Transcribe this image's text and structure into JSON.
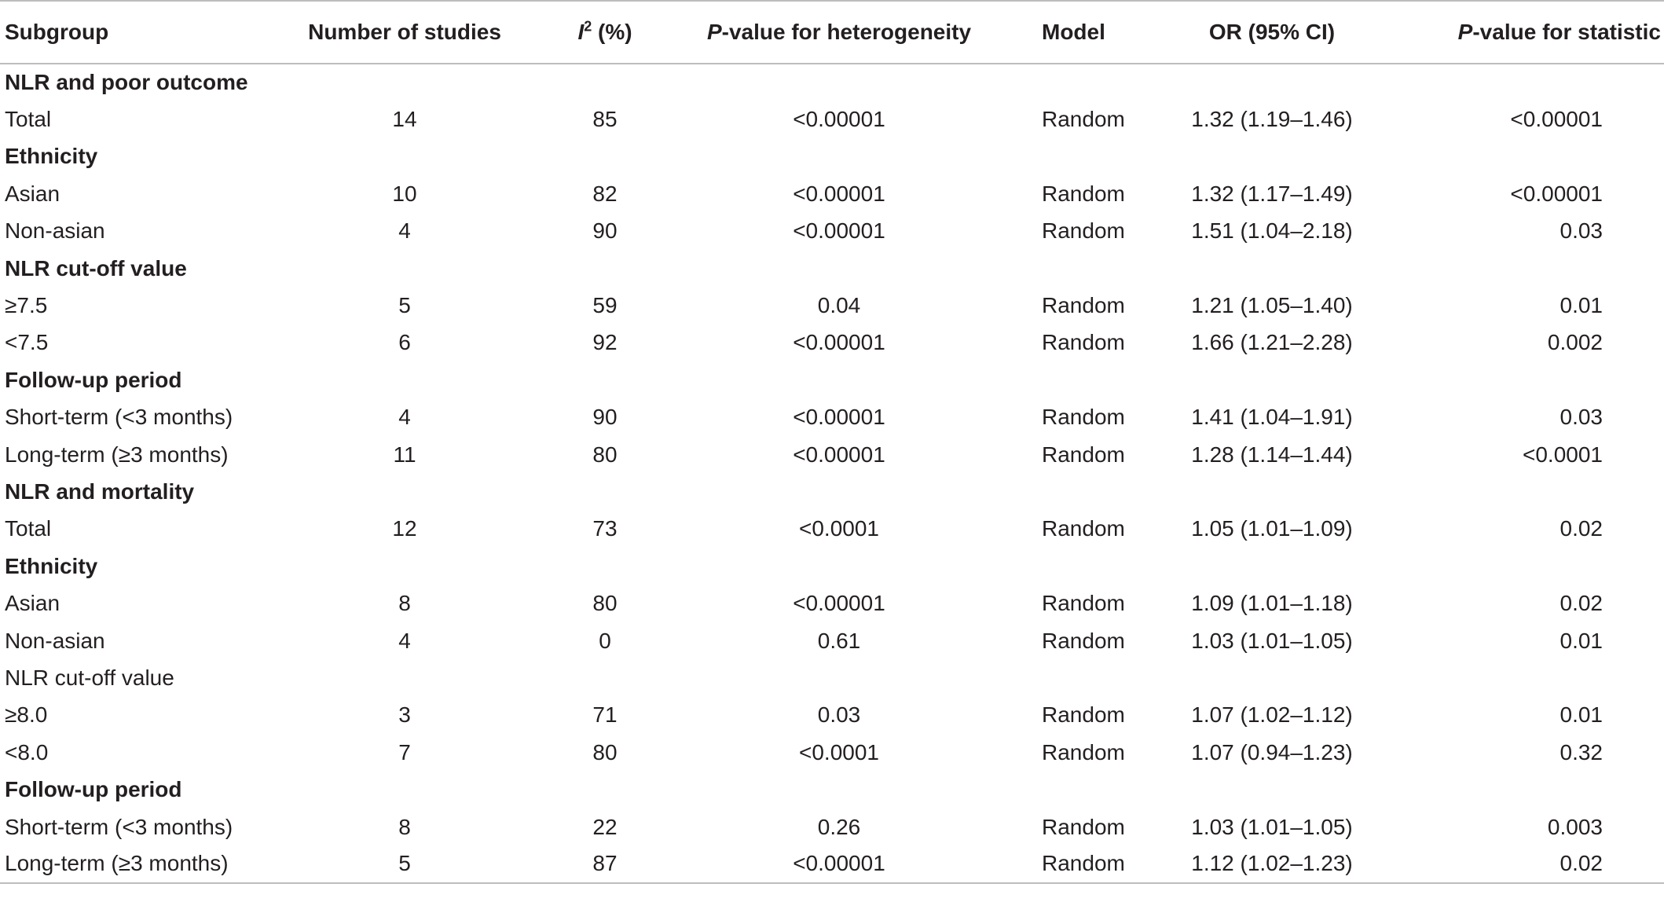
{
  "table": {
    "headers": {
      "subgroup": "Subgroup",
      "num_studies": "Number of studies",
      "i2_letter": "I",
      "i2_sup": "2",
      "i2_suffix": " (%)",
      "p_het_italic": "P",
      "p_het_rest": "-value for heterogeneity",
      "model": "Model",
      "or": "OR (95% CI)",
      "p_stat_italic": "P",
      "p_stat_rest": "-value for statistic"
    },
    "rows": [
      {
        "type": "section",
        "label": "NLR and poor outcome"
      },
      {
        "type": "data",
        "label": "Total",
        "n": "14",
        "i2": "85",
        "p_het": "<0.00001",
        "model": "Random",
        "or": "1.32 (1.19–1.46)",
        "p_stat": "<0.00001"
      },
      {
        "type": "section",
        "label": "Ethnicity"
      },
      {
        "type": "data",
        "label": "Asian",
        "n": "10",
        "i2": "82",
        "p_het": "<0.00001",
        "model": "Random",
        "or": "1.32 (1.17–1.49)",
        "p_stat": "<0.00001"
      },
      {
        "type": "data",
        "label": "Non-asian",
        "n": "4",
        "i2": "90",
        "p_het": "<0.00001",
        "model": "Random",
        "or": "1.51 (1.04–2.18)",
        "p_stat": "0.03"
      },
      {
        "type": "section",
        "label": "NLR cut-off value"
      },
      {
        "type": "data",
        "label": "≥7.5",
        "n": "5",
        "i2": "59",
        "p_het": "0.04",
        "model": "Random",
        "or": "1.21 (1.05–1.40)",
        "p_stat": "0.01"
      },
      {
        "type": "data",
        "label": "<7.5",
        "n": "6",
        "i2": "92",
        "p_het": "<0.00001",
        "model": "Random",
        "or": "1.66 (1.21–2.28)",
        "p_stat": "0.002"
      },
      {
        "type": "section",
        "label": "Follow-up period"
      },
      {
        "type": "data",
        "label": "Short-term (<3 months)",
        "n": "4",
        "i2": "90",
        "p_het": "<0.00001",
        "model": "Random",
        "or": "1.41 (1.04–1.91)",
        "p_stat": "0.03"
      },
      {
        "type": "data",
        "label": "Long-term (≥3 months)",
        "n": "11",
        "i2": "80",
        "p_het": "<0.00001",
        "model": "Random",
        "or": "1.28 (1.14–1.44)",
        "p_stat": "<0.0001"
      },
      {
        "type": "section",
        "label": "NLR and mortality"
      },
      {
        "type": "data",
        "label": "Total",
        "n": "12",
        "i2": "73",
        "p_het": "<0.0001",
        "model": "Random",
        "or": "1.05 (1.01–1.09)",
        "p_stat": "0.02"
      },
      {
        "type": "section",
        "label": "Ethnicity"
      },
      {
        "type": "data",
        "label": "Asian",
        "n": "8",
        "i2": "80",
        "p_het": "<0.00001",
        "model": "Random",
        "or": "1.09 (1.01–1.18)",
        "p_stat": "0.02"
      },
      {
        "type": "data",
        "label": "Non-asian",
        "n": "4",
        "i2": "0",
        "p_het": "0.61",
        "model": "Random",
        "or": "1.03 (1.01–1.05)",
        "p_stat": "0.01"
      },
      {
        "type": "section-plain",
        "label": "NLR cut-off value"
      },
      {
        "type": "data",
        "label": "≥8.0",
        "n": "3",
        "i2": "71",
        "p_het": "0.03",
        "model": "Random",
        "or": "1.07 (1.02–1.12)",
        "p_stat": "0.01"
      },
      {
        "type": "data",
        "label": "<8.0",
        "n": "7",
        "i2": "80",
        "p_het": "<0.0001",
        "model": "Random",
        "or": "1.07 (0.94–1.23)",
        "p_stat": "0.32"
      },
      {
        "type": "section",
        "label": "Follow-up period"
      },
      {
        "type": "data",
        "label": "Short-term (<3 months)",
        "n": "8",
        "i2": "22",
        "p_het": "0.26",
        "model": "Random",
        "or": "1.03 (1.01–1.05)",
        "p_stat": "0.003"
      },
      {
        "type": "data",
        "label": "Long-term (≥3 months)",
        "n": "5",
        "i2": "87",
        "p_het": "<0.00001",
        "model": "Random",
        "or": "1.12 (1.02–1.23)",
        "p_stat": "0.02"
      }
    ]
  }
}
